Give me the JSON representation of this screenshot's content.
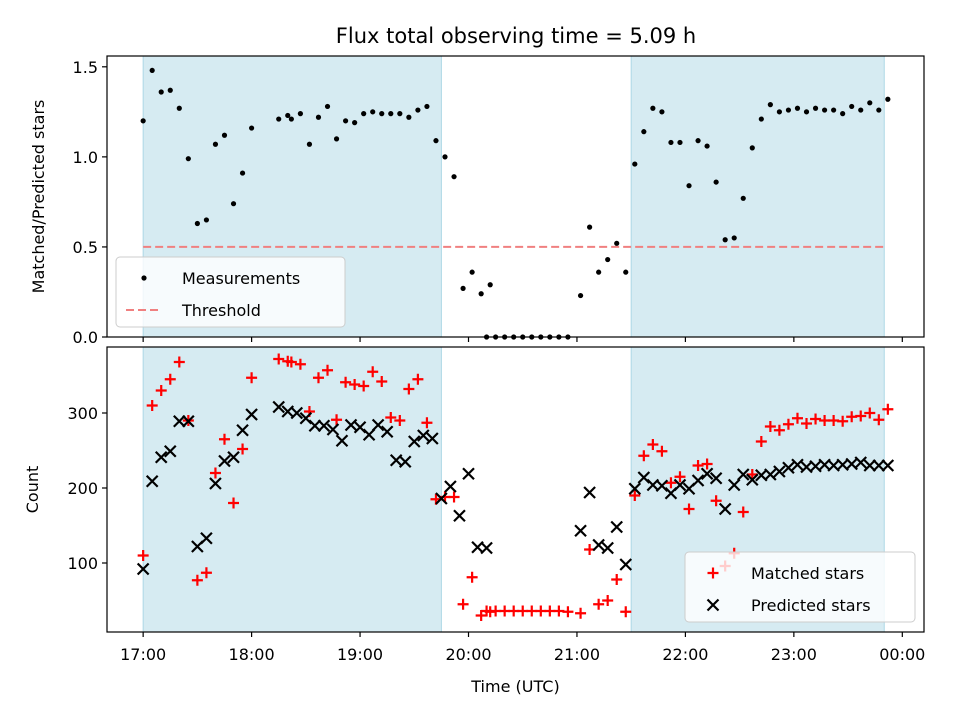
{
  "figure": {
    "title": "Flux total observing time = 5.09 h"
  },
  "chart_data": [
    {
      "type": "scatter",
      "panel": "top",
      "ylabel": "Matched/Predicted stars",
      "xlim": [
        "16:40",
        "00:12"
      ],
      "ylim": [
        0,
        1.56
      ],
      "yticks": [
        0.0,
        0.5,
        1.0,
        1.5
      ],
      "ytick_labels": [
        "0.0",
        "0.5",
        "1.0",
        "1.5"
      ],
      "shaded_intervals": [
        [
          "17:00",
          "19:45"
        ],
        [
          "21:30",
          "23:50"
        ]
      ],
      "threshold": {
        "name": "Threshold",
        "value": 0.5,
        "color": "#f08080",
        "style": "dashed"
      },
      "legend_position": "lower-left",
      "series": [
        {
          "name": "Measurements",
          "color": "#000000",
          "marker": "dot",
          "points": [
            [
              "17:00",
              1.2
            ],
            [
              "17:05",
              1.48
            ],
            [
              "17:10",
              1.36
            ],
            [
              "17:15",
              1.37
            ],
            [
              "17:20",
              1.27
            ],
            [
              "17:25",
              0.99
            ],
            [
              "17:30",
              0.63
            ],
            [
              "17:35",
              0.65
            ],
            [
              "17:40",
              1.07
            ],
            [
              "17:45",
              1.12
            ],
            [
              "17:50",
              0.74
            ],
            [
              "17:55",
              0.91
            ],
            [
              "18:00",
              1.16
            ],
            [
              "18:15",
              1.21
            ],
            [
              "18:20",
              1.23
            ],
            [
              "18:22",
              1.21
            ],
            [
              "18:27",
              1.24
            ],
            [
              "18:32",
              1.07
            ],
            [
              "18:37",
              1.22
            ],
            [
              "18:42",
              1.28
            ],
            [
              "18:47",
              1.1
            ],
            [
              "18:52",
              1.2
            ],
            [
              "18:57",
              1.19
            ],
            [
              "19:02",
              1.24
            ],
            [
              "19:07",
              1.25
            ],
            [
              "19:12",
              1.24
            ],
            [
              "19:17",
              1.24
            ],
            [
              "19:22",
              1.24
            ],
            [
              "19:27",
              1.22
            ],
            [
              "19:32",
              1.26
            ],
            [
              "19:37",
              1.28
            ],
            [
              "19:42",
              1.09
            ],
            [
              "19:47",
              1.0
            ],
            [
              "19:52",
              0.89
            ],
            [
              "19:57",
              0.27
            ],
            [
              "20:02",
              0.36
            ],
            [
              "20:07",
              0.24
            ],
            [
              "20:12",
              0.29
            ],
            [
              "20:10",
              0.0
            ],
            [
              "20:15",
              0.0
            ],
            [
              "20:20",
              0.0
            ],
            [
              "20:25",
              0.0
            ],
            [
              "20:30",
              0.0
            ],
            [
              "20:35",
              0.0
            ],
            [
              "20:40",
              0.0
            ],
            [
              "20:45",
              0.0
            ],
            [
              "20:50",
              0.0
            ],
            [
              "20:55",
              0.0
            ],
            [
              "21:02",
              0.23
            ],
            [
              "21:07",
              0.61
            ],
            [
              "21:12",
              0.36
            ],
            [
              "21:17",
              0.43
            ],
            [
              "21:22",
              0.52
            ],
            [
              "21:27",
              0.36
            ],
            [
              "21:32",
              0.96
            ],
            [
              "21:37",
              1.14
            ],
            [
              "21:42",
              1.27
            ],
            [
              "21:47",
              1.25
            ],
            [
              "21:52",
              1.08
            ],
            [
              "21:57",
              1.08
            ],
            [
              "22:02",
              0.84
            ],
            [
              "22:07",
              1.09
            ],
            [
              "22:12",
              1.06
            ],
            [
              "22:17",
              0.86
            ],
            [
              "22:22",
              0.54
            ],
            [
              "22:27",
              0.55
            ],
            [
              "22:32",
              0.77
            ],
            [
              "22:37",
              1.05
            ],
            [
              "22:42",
              1.21
            ],
            [
              "22:47",
              1.29
            ],
            [
              "22:52",
              1.25
            ],
            [
              "22:57",
              1.26
            ],
            [
              "23:02",
              1.27
            ],
            [
              "23:07",
              1.25
            ],
            [
              "23:12",
              1.27
            ],
            [
              "23:17",
              1.26
            ],
            [
              "23:22",
              1.26
            ],
            [
              "23:27",
              1.24
            ],
            [
              "23:32",
              1.28
            ],
            [
              "23:37",
              1.26
            ],
            [
              "23:42",
              1.3
            ],
            [
              "23:47",
              1.26
            ],
            [
              "23:52",
              1.32
            ]
          ]
        }
      ]
    },
    {
      "type": "scatter",
      "panel": "bottom",
      "xlabel": "Time (UTC)",
      "ylabel": "Count",
      "xlim": [
        "16:40",
        "00:12"
      ],
      "ylim": [
        8,
        388
      ],
      "xticks": [
        "17:00",
        "18:00",
        "19:00",
        "20:00",
        "21:00",
        "22:00",
        "23:00",
        "00:00"
      ],
      "yticks": [
        100,
        200,
        300
      ],
      "shaded_intervals": [
        [
          "17:00",
          "19:45"
        ],
        [
          "21:30",
          "23:50"
        ]
      ],
      "legend_position": "lower-right",
      "series": [
        {
          "name": "Matched stars",
          "color": "#ff0000",
          "marker": "plus",
          "points": [
            [
              "17:00",
              110
            ],
            [
              "17:05",
              310
            ],
            [
              "17:10",
              330
            ],
            [
              "17:15",
              345
            ],
            [
              "17:20",
              368
            ],
            [
              "17:25",
              290
            ],
            [
              "17:30",
              77
            ],
            [
              "17:35",
              87
            ],
            [
              "17:40",
              220
            ],
            [
              "17:45",
              265
            ],
            [
              "17:50",
              180
            ],
            [
              "17:55",
              252
            ],
            [
              "18:00",
              347
            ],
            [
              "18:15",
              372
            ],
            [
              "18:20",
              369
            ],
            [
              "18:22",
              368
            ],
            [
              "18:27",
              365
            ],
            [
              "18:32",
              302
            ],
            [
              "18:37",
              347
            ],
            [
              "18:42",
              357
            ],
            [
              "18:47",
              291
            ],
            [
              "18:52",
              341
            ],
            [
              "18:57",
              338
            ],
            [
              "19:02",
              336
            ],
            [
              "19:07",
              355
            ],
            [
              "19:12",
              342
            ],
            [
              "19:17",
              294
            ],
            [
              "19:22",
              290
            ],
            [
              "19:27",
              332
            ],
            [
              "19:32",
              345
            ],
            [
              "19:37",
              287
            ],
            [
              "19:42",
              185
            ],
            [
              "19:47",
              188
            ],
            [
              "19:52",
              188
            ],
            [
              "19:57",
              45
            ],
            [
              "20:02",
              81
            ],
            [
              "20:07",
              30
            ],
            [
              "20:12",
              35
            ],
            [
              "20:10",
              36
            ],
            [
              "20:15",
              36
            ],
            [
              "20:20",
              36
            ],
            [
              "20:25",
              36
            ],
            [
              "20:30",
              36
            ],
            [
              "20:35",
              36
            ],
            [
              "20:40",
              36
            ],
            [
              "20:45",
              36
            ],
            [
              "20:50",
              36
            ],
            [
              "20:55",
              35
            ],
            [
              "21:02",
              33
            ],
            [
              "21:07",
              118
            ],
            [
              "21:12",
              45
            ],
            [
              "21:17",
              50
            ],
            [
              "21:22",
              78
            ],
            [
              "21:27",
              35
            ],
            [
              "21:32",
              190
            ],
            [
              "21:37",
              243
            ],
            [
              "21:42",
              258
            ],
            [
              "21:47",
              249
            ],
            [
              "21:52",
              207
            ],
            [
              "21:57",
              215
            ],
            [
              "22:02",
              172
            ],
            [
              "22:07",
              230
            ],
            [
              "22:12",
              232
            ],
            [
              "22:17",
              183
            ],
            [
              "22:22",
              96
            ],
            [
              "22:27",
              113
            ],
            [
              "22:32",
              168
            ],
            [
              "22:37",
              218
            ],
            [
              "22:42",
              262
            ],
            [
              "22:47",
              282
            ],
            [
              "22:52",
              277
            ],
            [
              "22:57",
              285
            ],
            [
              "23:02",
              293
            ],
            [
              "23:07",
              286
            ],
            [
              "23:12",
              292
            ],
            [
              "23:17",
              290
            ],
            [
              "23:22",
              290
            ],
            [
              "23:27",
              289
            ],
            [
              "23:32",
              295
            ],
            [
              "23:37",
              296
            ],
            [
              "23:42",
              300
            ],
            [
              "23:47",
              291
            ],
            [
              "23:52",
              305
            ]
          ]
        },
        {
          "name": "Predicted stars",
          "color": "#000000",
          "marker": "x",
          "points": [
            [
              "17:00",
              92
            ],
            [
              "17:05",
              209
            ],
            [
              "17:10",
              241
            ],
            [
              "17:15",
              249
            ],
            [
              "17:20",
              289
            ],
            [
              "17:25",
              289
            ],
            [
              "17:30",
              122
            ],
            [
              "17:35",
              133
            ],
            [
              "17:40",
              206
            ],
            [
              "17:45",
              236
            ],
            [
              "17:50",
              241
            ],
            [
              "17:55",
              277
            ],
            [
              "18:00",
              298
            ],
            [
              "18:15",
              308
            ],
            [
              "18:20",
              302
            ],
            [
              "18:25",
              300
            ],
            [
              "18:30",
              293
            ],
            [
              "18:35",
              283
            ],
            [
              "18:40",
              283
            ],
            [
              "18:45",
              278
            ],
            [
              "18:50",
              263
            ],
            [
              "18:55",
              284
            ],
            [
              "19:00",
              281
            ],
            [
              "19:05",
              271
            ],
            [
              "19:10",
              284
            ],
            [
              "19:15",
              275
            ],
            [
              "19:20",
              237
            ],
            [
              "19:25",
              235
            ],
            [
              "19:30",
              262
            ],
            [
              "19:35",
              270
            ],
            [
              "19:40",
              266
            ],
            [
              "19:45",
              186
            ],
            [
              "19:50",
              202
            ],
            [
              "19:55",
              163
            ],
            [
              "20:00",
              219
            ],
            [
              "20:05",
              121
            ],
            [
              "20:10",
              120
            ],
            [
              "21:02",
              143
            ],
            [
              "21:07",
              194
            ],
            [
              "21:12",
              124
            ],
            [
              "21:17",
              120
            ],
            [
              "21:22",
              148
            ],
            [
              "21:27",
              98
            ],
            [
              "21:32",
              199
            ],
            [
              "21:37",
              214
            ],
            [
              "21:42",
              204
            ],
            [
              "21:47",
              203
            ],
            [
              "21:52",
              193
            ],
            [
              "21:57",
              204
            ],
            [
              "22:02",
              199
            ],
            [
              "22:07",
              210
            ],
            [
              "22:12",
              219
            ],
            [
              "22:17",
              213
            ],
            [
              "22:22",
              172
            ],
            [
              "22:27",
              204
            ],
            [
              "22:32",
              218
            ],
            [
              "22:37",
              211
            ],
            [
              "22:42",
              217
            ],
            [
              "22:47",
              218
            ],
            [
              "22:52",
              222
            ],
            [
              "22:57",
              227
            ],
            [
              "23:02",
              231
            ],
            [
              "23:07",
              228
            ],
            [
              "23:12",
              229
            ],
            [
              "23:17",
              231
            ],
            [
              "23:22",
              230
            ],
            [
              "23:27",
              231
            ],
            [
              "23:32",
              232
            ],
            [
              "23:37",
              234
            ],
            [
              "23:42",
              230
            ],
            [
              "23:47",
              230
            ],
            [
              "23:52",
              230
            ]
          ]
        }
      ]
    }
  ]
}
